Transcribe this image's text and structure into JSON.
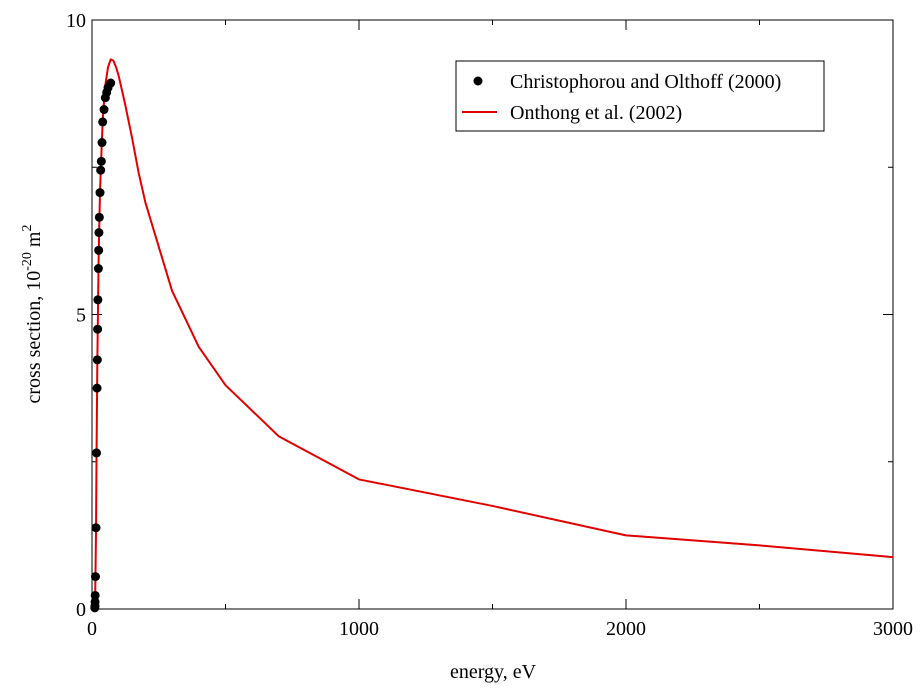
{
  "chart_data": {
    "type": "line",
    "xlabel": "energy, eV",
    "ylabel_main": "cross section, 10",
    "ylabel_exp": "-20",
    "ylabel_unit": " m",
    "ylabel_unit_exp": "2",
    "xlim": [
      0,
      3000
    ],
    "ylim": [
      0,
      10
    ],
    "x_ticks": [
      0,
      1000,
      2000,
      3000
    ],
    "x_tick_labels": [
      "0",
      "1000",
      "2000",
      "3000"
    ],
    "x_minor_ticks": [
      500,
      1500,
      2500
    ],
    "y_ticks": [
      0,
      5,
      10
    ],
    "y_tick_labels": [
      "0",
      "5",
      "10"
    ],
    "y_minor_ticks": [
      2.5,
      7.5
    ],
    "legend_position": "top-right",
    "series": [
      {
        "name": "Christophorou and Olthoff (2000)",
        "kind": "scatter",
        "color": "#000000",
        "points": [
          [
            10.5,
            0.02
          ],
          [
            11,
            0.05
          ],
          [
            11.5,
            0.12
          ],
          [
            12,
            0.23
          ],
          [
            13,
            0.55
          ],
          [
            15,
            1.38
          ],
          [
            17,
            2.65
          ],
          [
            19,
            3.75
          ],
          [
            20,
            4.23
          ],
          [
            21,
            4.75
          ],
          [
            22,
            5.25
          ],
          [
            24,
            5.78
          ],
          [
            25,
            6.09
          ],
          [
            26,
            6.39
          ],
          [
            27.5,
            6.65
          ],
          [
            30,
            7.07
          ],
          [
            32.5,
            7.45
          ],
          [
            35,
            7.6
          ],
          [
            37.5,
            7.92
          ],
          [
            40,
            8.27
          ],
          [
            45,
            8.48
          ],
          [
            50,
            8.68
          ],
          [
            55,
            8.77
          ],
          [
            60,
            8.85
          ],
          [
            70,
            8.93
          ]
        ]
      },
      {
        "name": "Onthong et al. (2002)",
        "kind": "line",
        "color": "#e00000",
        "points": [
          [
            10.5,
            0.0
          ],
          [
            12,
            0.2
          ],
          [
            15,
            1.3
          ],
          [
            17,
            2.6
          ],
          [
            20,
            4.2
          ],
          [
            25,
            6.0
          ],
          [
            30,
            7.1
          ],
          [
            35,
            7.7
          ],
          [
            40,
            8.3
          ],
          [
            50,
            8.9
          ],
          [
            60,
            9.2
          ],
          [
            70,
            9.33
          ],
          [
            80,
            9.31
          ],
          [
            90,
            9.2
          ],
          [
            100,
            9.05
          ],
          [
            125,
            8.55
          ],
          [
            150,
            8.0
          ],
          [
            175,
            7.4
          ],
          [
            200,
            6.9
          ],
          [
            300,
            5.4
          ],
          [
            400,
            4.45
          ],
          [
            500,
            3.8
          ],
          [
            700,
            2.93
          ],
          [
            1000,
            2.2
          ],
          [
            1500,
            1.75
          ],
          [
            2000,
            1.25
          ],
          [
            2500,
            1.08
          ],
          [
            3000,
            0.88
          ]
        ]
      }
    ]
  }
}
